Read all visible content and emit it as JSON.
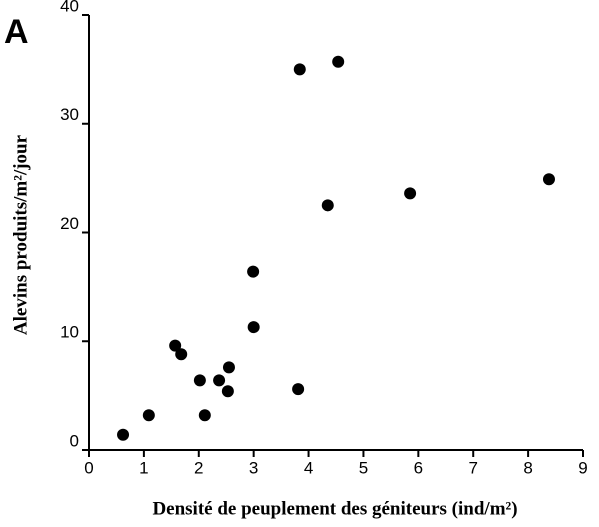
{
  "chart_data": {
    "type": "scatter",
    "panel_label": "A",
    "x_label": "Densité de peuplement des géniteurs (ind/m²)",
    "y_label": "Alevins produits/m²/jour",
    "x": [
      0.62,
      1.09,
      1.57,
      1.68,
      2.02,
      2.11,
      2.37,
      2.55,
      2.53,
      2.99,
      3.0,
      3.81,
      3.84,
      4.35,
      4.54,
      5.85,
      8.38
    ],
    "values": [
      1.4,
      3.2,
      9.6,
      8.8,
      6.4,
      3.2,
      6.4,
      7.6,
      5.4,
      16.4,
      11.3,
      5.6,
      35.0,
      22.5,
      35.7,
      23.6,
      24.9
    ],
    "color": "#000000",
    "xlim": [
      0,
      9
    ],
    "xticks": [
      0,
      1,
      2,
      3,
      4,
      5,
      6,
      7,
      8,
      9
    ],
    "ylim": [
      0,
      40
    ],
    "yticks": [
      0,
      10,
      20,
      30,
      40
    ]
  }
}
